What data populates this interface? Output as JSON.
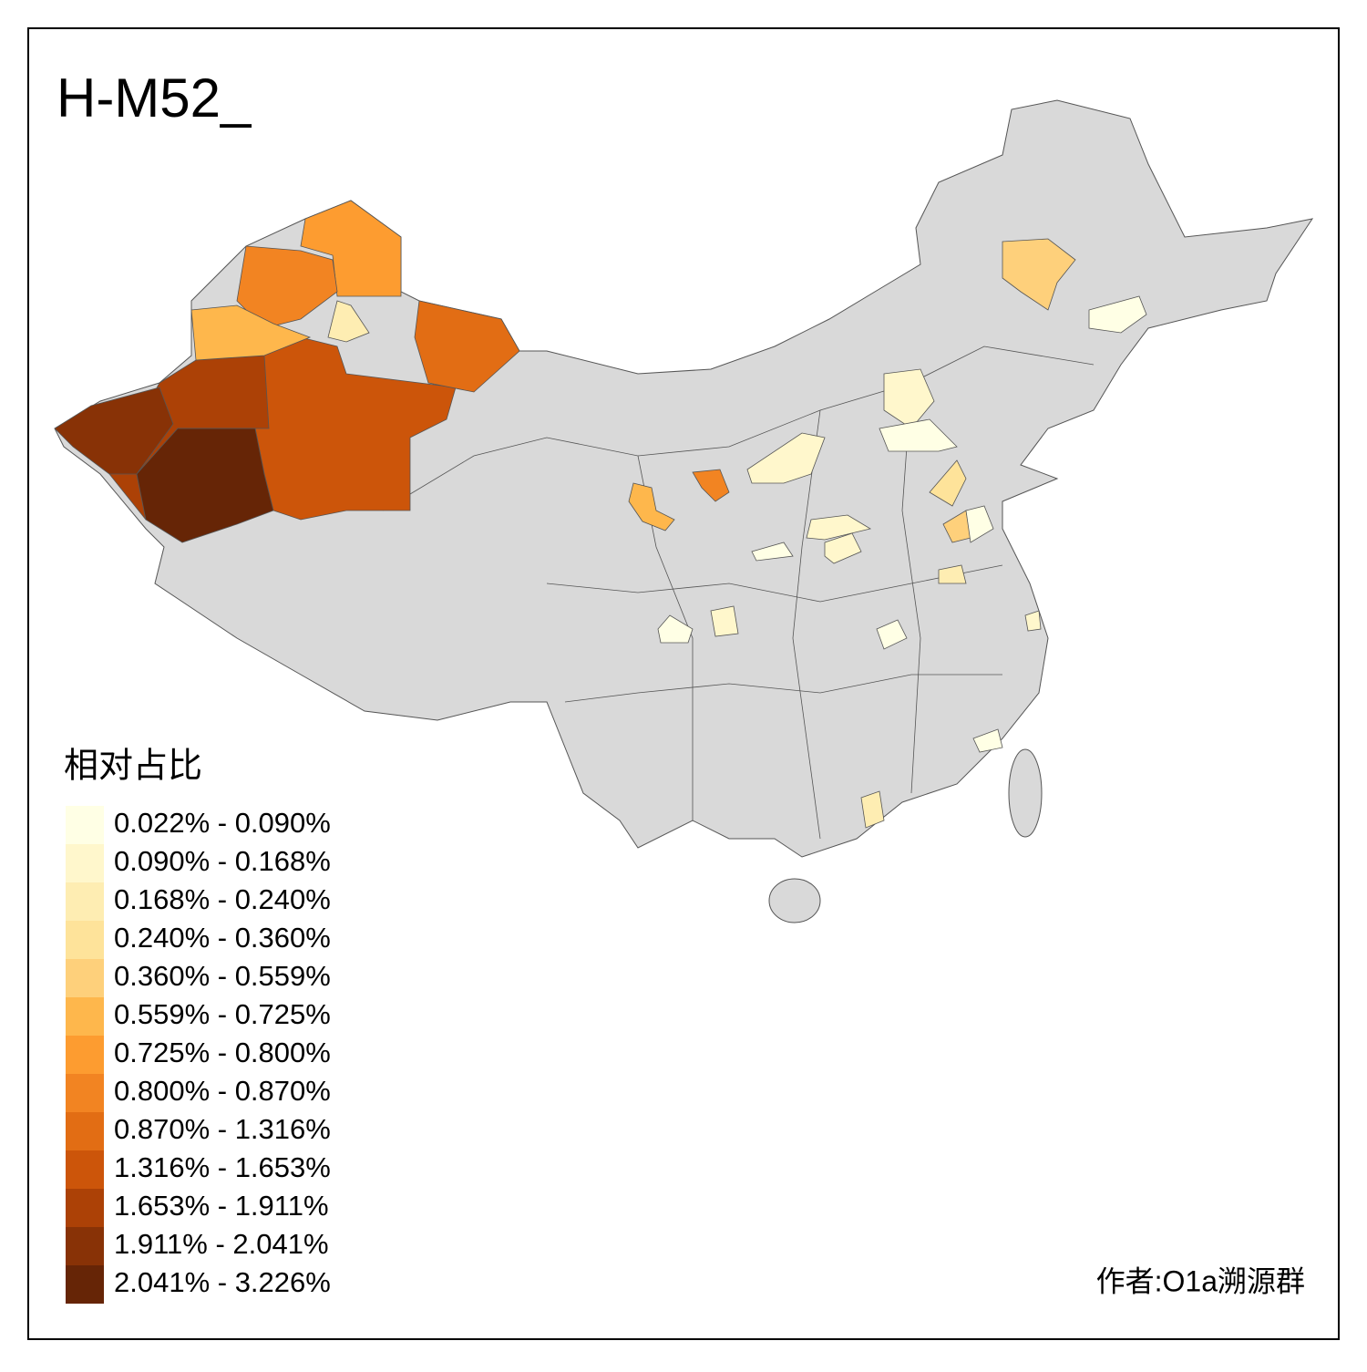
{
  "title": "H-M52_",
  "legend": {
    "title": "相对占比",
    "items": [
      {
        "label": "0.022% - 0.090%",
        "color": "#ffffe5"
      },
      {
        "label": "0.090% - 0.168%",
        "color": "#fff7cc"
      },
      {
        "label": "0.168% - 0.240%",
        "color": "#feedb2"
      },
      {
        "label": "0.240% - 0.360%",
        "color": "#fee39a"
      },
      {
        "label": "0.360% - 0.559%",
        "color": "#fed07b"
      },
      {
        "label": "0.559% - 0.725%",
        "color": "#feb74c"
      },
      {
        "label": "0.725% - 0.800%",
        "color": "#fd9c30"
      },
      {
        "label": "0.800% - 0.870%",
        "color": "#f28422"
      },
      {
        "label": "0.870% - 1.316%",
        "color": "#e26d14"
      },
      {
        "label": "1.316% - 1.653%",
        "color": "#cc550a"
      },
      {
        "label": "1.653% - 1.911%",
        "color": "#ac4106"
      },
      {
        "label": "1.911% - 2.041%",
        "color": "#883206"
      },
      {
        "label": "2.041% - 3.226%",
        "color": "#662506"
      }
    ]
  },
  "credit": "作者:O1a溯源群"
}
